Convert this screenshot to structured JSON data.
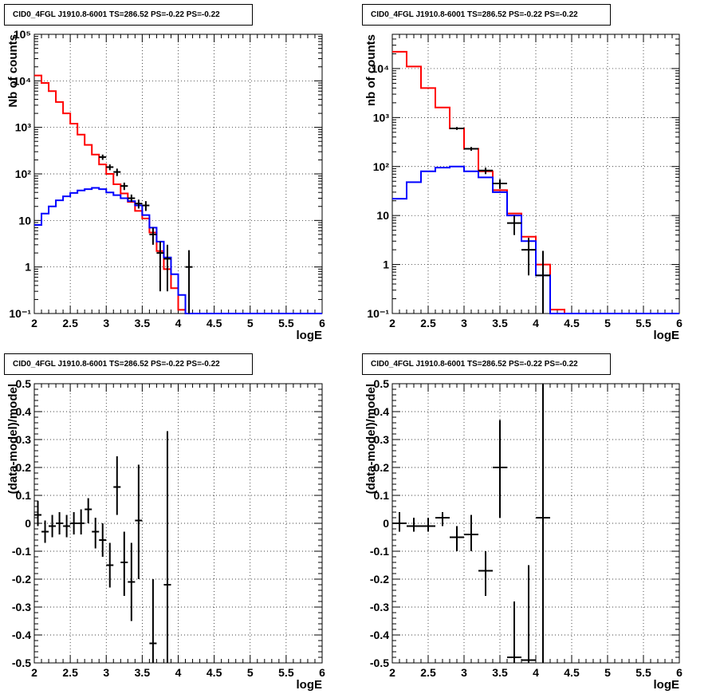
{
  "chart_data": [
    {
      "type": "line",
      "title": "CID0_4FGL J1910.8-6001 TS=286.52 PS=-0.22 PS=-0.22",
      "xlabel": "logE",
      "ylabel": "Nb of counts",
      "xlim": [
        2,
        6
      ],
      "ylim": [
        0.1,
        100000
      ],
      "yscale": "log",
      "grid": true,
      "xticks": [
        "2",
        "2.5",
        "3",
        "3.5",
        "4",
        "4.5",
        "5",
        "5.5",
        "6"
      ],
      "yticks": [
        "10⁻¹",
        "1",
        "10",
        "10²",
        "10³",
        "10⁴",
        "10⁵"
      ],
      "bin_edges": [
        2.0,
        2.1,
        2.2,
        2.3,
        2.4,
        2.5,
        2.6,
        2.7,
        2.8,
        2.9,
        3.0,
        3.1,
        3.2,
        3.3,
        3.4,
        3.5,
        3.6,
        3.7,
        3.8,
        3.9,
        4.0,
        4.1,
        4.2,
        4.3,
        4.4,
        4.5,
        4.6,
        4.7,
        4.8,
        4.9,
        5.0,
        5.1,
        5.2,
        5.3,
        5.4,
        5.5,
        5.6,
        5.7,
        5.8,
        5.9,
        6.0
      ],
      "series": [
        {
          "color": "#ff0000",
          "style": "step",
          "values": [
            13000,
            9000,
            6000,
            3500,
            2000,
            1200,
            700,
            420,
            260,
            160,
            100,
            60,
            38,
            25,
            16,
            11,
            5.5,
            2.2,
            0.9,
            0.35,
            0.12,
            0.1,
            0.1,
            0.1,
            0.1,
            0.1,
            0.1,
            0.1,
            0.1,
            0.1,
            0.1,
            0.1,
            0.1,
            0.1,
            0.1,
            0.1,
            0.1,
            0.1,
            0.1,
            0.1
          ]
        },
        {
          "color": "#0000ff",
          "style": "step",
          "values": [
            8,
            14,
            20,
            27,
            33,
            39,
            44,
            47,
            50,
            47,
            40,
            35,
            30,
            26,
            21,
            13,
            7,
            3.5,
            1.6,
            0.7,
            0.25,
            0.1,
            0.1,
            0.1,
            0.1,
            0.1,
            0.1,
            0.1,
            0.1,
            0.1,
            0.1,
            0.1,
            0.1,
            0.1,
            0.1,
            0.1,
            0.1,
            0.1,
            0.1,
            0.1
          ]
        }
      ],
      "data_points": [
        {
          "x": 2.95,
          "y": 230,
          "xerr": 0.05,
          "ylo": 200,
          "yhi": 260
        },
        {
          "x": 3.05,
          "y": 140,
          "xerr": 0.05,
          "ylo": 120,
          "yhi": 160
        },
        {
          "x": 3.15,
          "y": 110,
          "xerr": 0.05,
          "ylo": 90,
          "yhi": 130
        },
        {
          "x": 3.25,
          "y": 55,
          "xerr": 0.05,
          "ylo": 45,
          "yhi": 65
        },
        {
          "x": 3.35,
          "y": 30,
          "xerr": 0.05,
          "ylo": 25,
          "yhi": 36
        },
        {
          "x": 3.45,
          "y": 23,
          "xerr": 0.05,
          "ylo": 18,
          "yhi": 28
        },
        {
          "x": 3.55,
          "y": 21,
          "xerr": 0.05,
          "ylo": 16,
          "yhi": 26
        },
        {
          "x": 3.65,
          "y": 5,
          "xerr": 0.05,
          "ylo": 3,
          "yhi": 7
        },
        {
          "x": 3.75,
          "y": 2,
          "xerr": 0.05,
          "ylo": 0.3,
          "yhi": 3.5
        },
        {
          "x": 3.85,
          "y": 1.5,
          "xerr": 0.05,
          "ylo": 0.3,
          "yhi": 3
        },
        {
          "x": 4.15,
          "y": 1,
          "xerr": 0.05,
          "ylo": 0.1,
          "yhi": 2.3
        }
      ]
    },
    {
      "type": "line",
      "title": "CID0_4FGL J1910.8-6001 TS=286.52 PS=-0.22 PS=-0.22",
      "xlabel": "logE",
      "ylabel": "nb of counts",
      "xlim": [
        2,
        6
      ],
      "ylim": [
        0.1,
        50000
      ],
      "yscale": "log",
      "grid": true,
      "xticks": [
        "2",
        "2.5",
        "3",
        "3.5",
        "4",
        "4.5",
        "5",
        "5.5",
        "6"
      ],
      "yticks": [
        "10⁻¹",
        "1",
        "10",
        "10²",
        "10³",
        "10⁴"
      ],
      "bin_edges": [
        2.0,
        2.2,
        2.4,
        2.6,
        2.8,
        3.0,
        3.2,
        3.4,
        3.6,
        3.8,
        4.0,
        4.2,
        4.4,
        4.6,
        4.8,
        5.0,
        5.2,
        5.4,
        5.6,
        5.8,
        6.0
      ],
      "series": [
        {
          "color": "#ff0000",
          "style": "step",
          "values": [
            22000,
            11000,
            4000,
            1600,
            600,
            230,
            80,
            33,
            11,
            3.7,
            1.0,
            0.12,
            0.1,
            0.1,
            0.1,
            0.1,
            0.1,
            0.1,
            0.1,
            0.1
          ]
        },
        {
          "color": "#0000ff",
          "style": "step",
          "values": [
            22,
            48,
            80,
            95,
            100,
            80,
            60,
            30,
            10,
            3,
            0.6,
            0.1,
            0.1,
            0.1,
            0.1,
            0.1,
            0.1,
            0.1,
            0.1,
            0.1
          ]
        }
      ],
      "data_points": [
        {
          "x": 2.9,
          "y": 600,
          "xerr": 0.1,
          "ylo": 560,
          "yhi": 640
        },
        {
          "x": 3.1,
          "y": 230,
          "xerr": 0.1,
          "ylo": 210,
          "yhi": 250
        },
        {
          "x": 3.3,
          "y": 83,
          "xerr": 0.1,
          "ylo": 70,
          "yhi": 95
        },
        {
          "x": 3.5,
          "y": 45,
          "xerr": 0.1,
          "ylo": 35,
          "yhi": 55
        },
        {
          "x": 3.7,
          "y": 7,
          "xerr": 0.1,
          "ylo": 4,
          "yhi": 10
        },
        {
          "x": 3.9,
          "y": 2,
          "xerr": 0.1,
          "ylo": 0.6,
          "yhi": 3.5
        },
        {
          "x": 4.1,
          "y": 0.6,
          "xerr": 0.1,
          "ylo": 0.1,
          "yhi": 1.9
        }
      ]
    },
    {
      "type": "scatter",
      "title": "CID0_4FGL J1910.8-6001 TS=286.52 PS=-0.22 PS=-0.22",
      "xlabel": "logE",
      "ylabel": "(data-model)/model",
      "xlim": [
        2,
        6
      ],
      "ylim": [
        -0.5,
        0.5
      ],
      "grid": true,
      "xticks": [
        "2",
        "2.5",
        "3",
        "3.5",
        "4",
        "4.5",
        "5",
        "5.5",
        "6"
      ],
      "yticks": [
        "-0.5",
        "-0.4",
        "-0.3",
        "-0.2",
        "-0.1",
        "0",
        "0.1",
        "0.2",
        "0.3",
        "0.4",
        "0.5"
      ],
      "data_points": [
        {
          "x": 2.05,
          "y": 0.03,
          "xerr": 0.05,
          "ylo": -0.01,
          "yhi": 0.08
        },
        {
          "x": 2.15,
          "y": -0.03,
          "xerr": 0.05,
          "ylo": -0.07,
          "yhi": 0.01
        },
        {
          "x": 2.25,
          "y": -0.01,
          "xerr": 0.05,
          "ylo": -0.05,
          "yhi": 0.03
        },
        {
          "x": 2.35,
          "y": 0.0,
          "xerr": 0.05,
          "ylo": -0.04,
          "yhi": 0.04
        },
        {
          "x": 2.45,
          "y": -0.01,
          "xerr": 0.05,
          "ylo": -0.05,
          "yhi": 0.03
        },
        {
          "x": 2.55,
          "y": 0.0,
          "xerr": 0.05,
          "ylo": -0.04,
          "yhi": 0.04
        },
        {
          "x": 2.65,
          "y": 0.0,
          "xerr": 0.05,
          "ylo": -0.04,
          "yhi": 0.05
        },
        {
          "x": 2.75,
          "y": 0.05,
          "xerr": 0.05,
          "ylo": 0.0,
          "yhi": 0.09
        },
        {
          "x": 2.85,
          "y": -0.03,
          "xerr": 0.05,
          "ylo": -0.09,
          "yhi": 0.02
        },
        {
          "x": 2.95,
          "y": -0.06,
          "xerr": 0.05,
          "ylo": -0.12,
          "yhi": 0.0
        },
        {
          "x": 3.05,
          "y": -0.15,
          "xerr": 0.05,
          "ylo": -0.23,
          "yhi": -0.07
        },
        {
          "x": 3.15,
          "y": 0.13,
          "xerr": 0.05,
          "ylo": 0.03,
          "yhi": 0.24
        },
        {
          "x": 3.25,
          "y": -0.14,
          "xerr": 0.05,
          "ylo": -0.26,
          "yhi": -0.03
        },
        {
          "x": 3.35,
          "y": -0.21,
          "xerr": 0.05,
          "ylo": -0.35,
          "yhi": -0.07
        },
        {
          "x": 3.45,
          "y": 0.01,
          "xerr": 0.05,
          "ylo": -0.2,
          "yhi": 0.21
        },
        {
          "x": 3.65,
          "y": -0.43,
          "xerr": 0.05,
          "ylo": -0.5,
          "yhi": -0.2
        },
        {
          "x": 3.85,
          "y": -0.22,
          "xerr": 0.05,
          "ylo": -0.5,
          "yhi": 0.33
        }
      ]
    },
    {
      "type": "scatter",
      "title": "CID0_4FGL J1910.8-6001 TS=286.52 PS=-0.22 PS=-0.22",
      "xlabel": "logE",
      "ylabel": "(data-model)/model",
      "xlim": [
        2,
        6
      ],
      "ylim": [
        -0.5,
        0.5
      ],
      "grid": true,
      "xticks": [
        "2",
        "2.5",
        "3",
        "3.5",
        "4",
        "4.5",
        "5",
        "5.5",
        "6"
      ],
      "yticks": [
        "-0.5",
        "-0.4",
        "-0.3",
        "-0.2",
        "-0.1",
        "0",
        "0.1",
        "0.2",
        "0.3",
        "0.4",
        "0.5"
      ],
      "data_points": [
        {
          "x": 2.1,
          "y": 0.0,
          "xerr": 0.1,
          "ylo": -0.03,
          "yhi": 0.04
        },
        {
          "x": 2.3,
          "y": -0.01,
          "xerr": 0.1,
          "ylo": -0.03,
          "yhi": 0.02
        },
        {
          "x": 2.5,
          "y": -0.01,
          "xerr": 0.1,
          "ylo": -0.03,
          "yhi": 0.02
        },
        {
          "x": 2.7,
          "y": 0.02,
          "xerr": 0.1,
          "ylo": -0.01,
          "yhi": 0.04
        },
        {
          "x": 2.9,
          "y": -0.05,
          "xerr": 0.1,
          "ylo": -0.1,
          "yhi": -0.01
        },
        {
          "x": 3.1,
          "y": -0.04,
          "xerr": 0.1,
          "ylo": -0.1,
          "yhi": 0.03
        },
        {
          "x": 3.3,
          "y": -0.17,
          "xerr": 0.1,
          "ylo": -0.26,
          "yhi": -0.1
        },
        {
          "x": 3.5,
          "y": 0.2,
          "xerr": 0.1,
          "ylo": 0.02,
          "yhi": 0.37
        },
        {
          "x": 3.7,
          "y": -0.48,
          "xerr": 0.1,
          "ylo": -0.5,
          "yhi": -0.28
        },
        {
          "x": 3.9,
          "y": -0.49,
          "xerr": 0.1,
          "ylo": -0.5,
          "yhi": -0.15
        },
        {
          "x": 4.1,
          "y": 0.02,
          "xerr": 0.1,
          "ylo": -0.5,
          "yhi": 0.5
        }
      ]
    }
  ]
}
